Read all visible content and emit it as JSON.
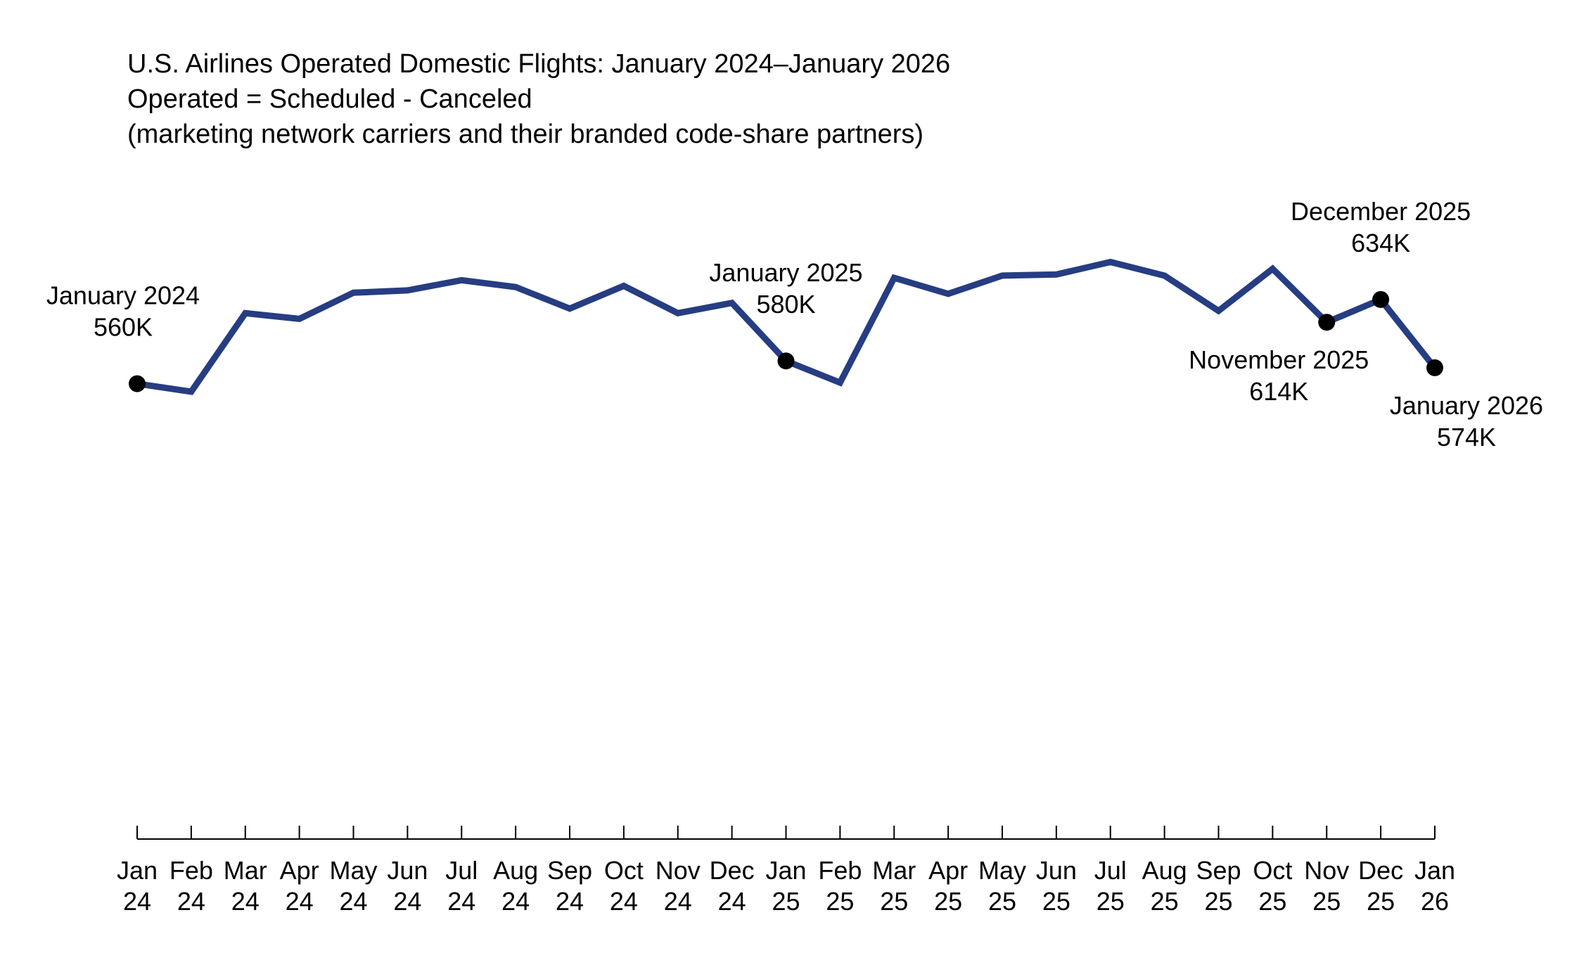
{
  "chart_data": {
    "type": "line",
    "title": [
      "U.S. Airlines Operated Domestic Flights: January 2024–January 2026",
      "Operated = Scheduled - Canceled",
      "(marketing network carriers and their branded code-share partners)"
    ],
    "xlabel": "",
    "ylabel": "",
    "grid": false,
    "legend": "none",
    "line_color": "#263D82",
    "marker_color": "#000000",
    "categories": [
      "Jan 24",
      "Feb 24",
      "Mar 24",
      "Apr 24",
      "May 24",
      "Jun 24",
      "Jul 24",
      "Aug 24",
      "Sep 24",
      "Oct 24",
      "Nov 24",
      "Dec 24",
      "Jan 25",
      "Feb 25",
      "Mar 25",
      "Apr 25",
      "May 25",
      "Jun 25",
      "Jul 25",
      "Aug 25",
      "Sep 25",
      "Oct 25",
      "Nov 25",
      "Dec 25",
      "Jan 26"
    ],
    "tick_labels": [
      [
        "Jan",
        "24"
      ],
      [
        "Feb",
        "24"
      ],
      [
        "Mar",
        "24"
      ],
      [
        "Apr",
        "24"
      ],
      [
        "May",
        "24"
      ],
      [
        "Jun",
        "24"
      ],
      [
        "Jul",
        "24"
      ],
      [
        "Aug",
        "24"
      ],
      [
        "Sep",
        "24"
      ],
      [
        "Oct",
        "24"
      ],
      [
        "Nov",
        "24"
      ],
      [
        "Dec",
        "24"
      ],
      [
        "Jan",
        "25"
      ],
      [
        "Feb",
        "25"
      ],
      [
        "Mar",
        "25"
      ],
      [
        "Apr",
        "25"
      ],
      [
        "May",
        "25"
      ],
      [
        "Jun",
        "25"
      ],
      [
        "Jul",
        "25"
      ],
      [
        "Aug",
        "25"
      ],
      [
        "Sep",
        "25"
      ],
      [
        "Oct",
        "25"
      ],
      [
        "Nov",
        "25"
      ],
      [
        "Dec",
        "25"
      ],
      [
        "Jan",
        "26"
      ]
    ],
    "series": [
      {
        "values": [
          560,
          553,
          622,
          617,
          640,
          642,
          651,
          645,
          626,
          646,
          622,
          631,
          580,
          561,
          653,
          639,
          655,
          656,
          667,
          655,
          624,
          661,
          614,
          634,
          574
        ]
      }
    ],
    "ylim": [
      160,
      780
    ],
    "annotations": [
      {
        "index": 0,
        "lines": [
          "January 2024",
          "560K"
        ],
        "position": "above"
      },
      {
        "index": 12,
        "lines": [
          "January 2025",
          "580K"
        ],
        "position": "above"
      },
      {
        "index": 22,
        "lines": [
          "November 2025",
          "614K"
        ],
        "position": "below"
      },
      {
        "index": 23,
        "lines": [
          "December 2025",
          "634K"
        ],
        "position": "above"
      },
      {
        "index": 24,
        "lines": [
          "January 2026",
          "574K"
        ],
        "position": "below"
      }
    ]
  }
}
